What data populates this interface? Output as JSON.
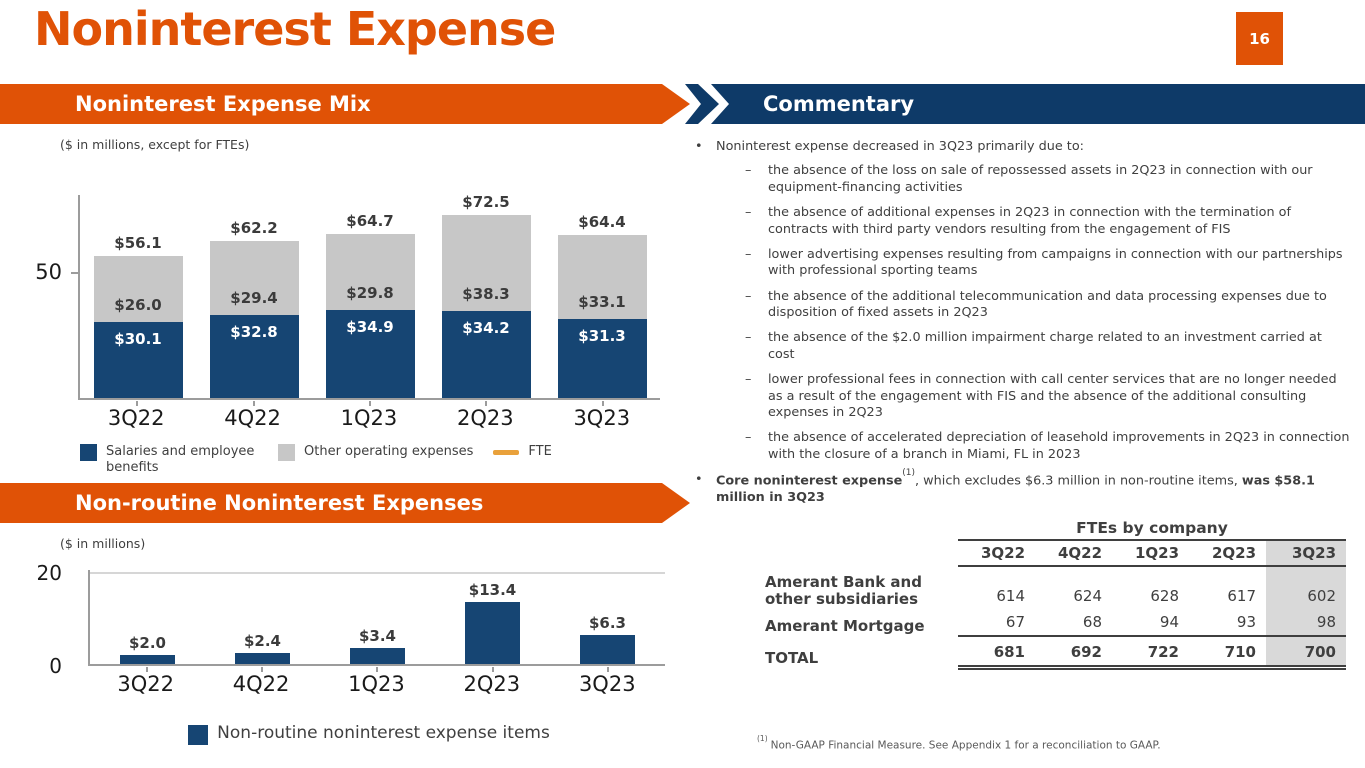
{
  "slide": {
    "title": "Noninterest Expense",
    "page_number": "16"
  },
  "accent_colors": {
    "orange": "#E05206",
    "navy": "#0E3A68",
    "bar_navy": "#164573",
    "bar_gray": "#C7C7C7",
    "gold": "#E9A13B",
    "highlight_gray": "#D9D9D9"
  },
  "chart_data": [
    {
      "type": "bar",
      "stacked": true,
      "title": "Noninterest Expense Mix",
      "subtitle": "($ in millions, except for FTEs)",
      "categories": [
        "3Q22",
        "4Q22",
        "1Q23",
        "2Q23",
        "3Q23"
      ],
      "series": [
        {
          "name": "Salaries and employee benefits",
          "color": "#164573",
          "values": [
            30.1,
            32.8,
            34.9,
            34.2,
            31.3
          ],
          "labels": [
            "$30.1",
            "$32.8",
            "$34.9",
            "$34.2",
            "$31.3"
          ]
        },
        {
          "name": "Other operating expenses",
          "color": "#C7C7C7",
          "values": [
            26.0,
            29.4,
            29.8,
            38.3,
            33.1
          ],
          "labels": [
            "$26.0",
            "$29.4",
            "$29.8",
            "$38.3",
            "$33.1"
          ]
        }
      ],
      "totals": [
        56.1,
        62.2,
        64.7,
        72.5,
        64.4
      ],
      "total_labels": [
        "$56.1",
        "$62.2",
        "$64.7",
        "$72.5",
        "$64.4"
      ],
      "legend": [
        {
          "swatch": "square",
          "color": "#164573",
          "label": "Salaries and employee benefits"
        },
        {
          "swatch": "square",
          "color": "#C7C7C7",
          "label": "Other operating expenses"
        },
        {
          "swatch": "line",
          "color": "#E9A13B",
          "label": "FTE"
        }
      ],
      "legend_position": "bottom",
      "grid": false,
      "ylim": [
        0,
        81
      ],
      "yticks": [
        {
          "value": 50,
          "label": "50"
        }
      ]
    },
    {
      "type": "bar",
      "stacked": false,
      "title": "Non-routine Noninterest Expenses",
      "subtitle": "($ in millions)",
      "categories": [
        "3Q22",
        "4Q22",
        "1Q23",
        "2Q23",
        "3Q23"
      ],
      "values": [
        2.0,
        2.4,
        3.4,
        13.4,
        6.3
      ],
      "labels": [
        "$2.0",
        "$2.4",
        "$3.4",
        "$13.4",
        "$6.3"
      ],
      "series_color": "#164573",
      "legend": [
        {
          "swatch": "square",
          "color": "#164573",
          "label": "Non-routine noninterest expense items"
        }
      ],
      "legend_position": "bottom",
      "grid": true,
      "ylim": [
        0,
        20.6
      ],
      "yticks": [
        {
          "value": 20,
          "label": "20"
        },
        {
          "value": 0,
          "label": "0"
        }
      ]
    }
  ],
  "commentary": {
    "banner": "Commentary",
    "bullet_marker": "•",
    "dash_marker": "–",
    "intro": "Noninterest expense decreased in 3Q23 primarily due to:",
    "sub_bullets": [
      "the absence of the loss on sale of repossessed assets in 2Q23 in connection with our equipment-financing activities",
      "the absence of additional expenses in 2Q23 in connection with the termination of contracts with third party vendors resulting from the engagement of FIS",
      "lower advertising expenses resulting from campaigns in connection with our partnerships with professional sporting teams",
      "the absence of the additional telecommunication and data processing expenses due to disposition of fixed assets in 2Q23",
      "the absence of the $2.0 million impairment charge related to an investment carried at cost",
      "lower professional fees in connection with call center services that are no longer needed as a result of the engagement with FIS and the absence of the additional consulting expenses in 2Q23",
      "the absence of accelerated depreciation of leasehold improvements in 2Q23 in connection with the closure of a branch in Miami, FL in 2023"
    ],
    "core": {
      "bold1": "Core noninterest expense",
      "sup": "(1)",
      "mid": ", which excludes $6.3 million in non-routine items, ",
      "bold2": "was $58.1 million in 3Q23"
    }
  },
  "fte_table": {
    "title": "FTEs by company",
    "columns": [
      "3Q22",
      "4Q22",
      "1Q23",
      "2Q23",
      "3Q23"
    ],
    "highlight_column": "3Q23",
    "rows": [
      {
        "label": "Amerant Bank and other subsidiaries",
        "values": [
          "614",
          "624",
          "628",
          "617",
          "602"
        ],
        "total": false
      },
      {
        "label": "Amerant Mortgage",
        "values": [
          "67",
          "68",
          "94",
          "93",
          "98"
        ],
        "total": false
      },
      {
        "label": "TOTAL",
        "values": [
          "681",
          "692",
          "722",
          "710",
          "700"
        ],
        "total": true
      }
    ]
  },
  "footnote": {
    "marker": "(1)",
    "text": "Non-GAAP Financial Measure. See Appendix 1 for a reconciliation to GAAP."
  }
}
